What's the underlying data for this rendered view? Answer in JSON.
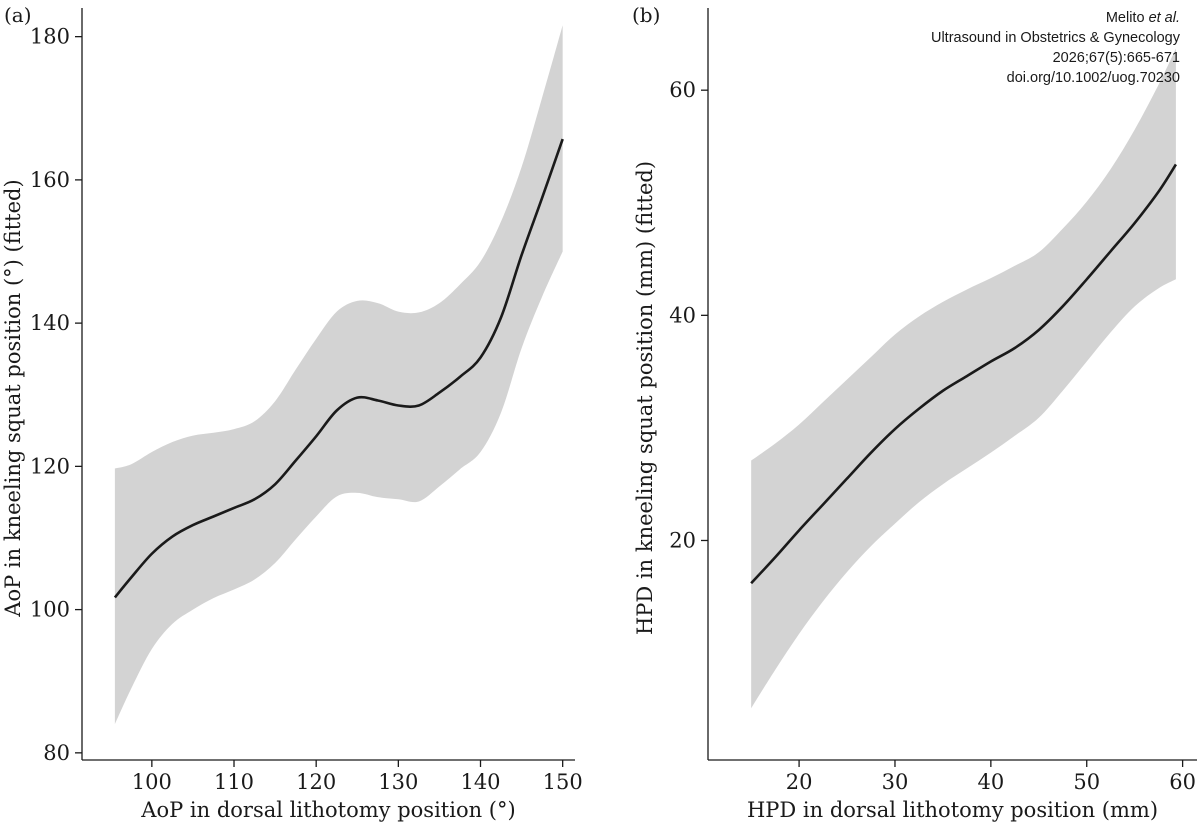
{
  "citation": {
    "authors_prefix": "Melito ",
    "authors_suffix": "et al.",
    "journal": "Ultrasound in Obstetrics & Gynecology",
    "volume": "2026;67(5):665-671",
    "doi": "doi.org/10.1002/uog.70230"
  },
  "colors": {
    "band": "#d3d3d3",
    "line": "#1a1a1a",
    "axis": "#1a1a1a"
  },
  "chart_data": [
    {
      "panel_label": "(a)",
      "type": "line",
      "xlabel": "AoP in dorsal lithotomy position (°)",
      "ylabel": "AoP in kneeling squat position (°) (fitted)",
      "xlim": [
        91.5,
        151.5
      ],
      "ylim": [
        79,
        184
      ],
      "xticks": [
        100,
        110,
        120,
        130,
        140,
        150
      ],
      "yticks": [
        80,
        100,
        120,
        140,
        160,
        180
      ],
      "x": [
        95.5,
        97.5,
        100,
        102.5,
        105,
        107.5,
        110,
        112.5,
        115,
        117.5,
        120,
        122.5,
        125,
        127.5,
        130,
        132.5,
        135,
        137.5,
        140,
        142.5,
        145,
        147.5,
        150
      ],
      "series": [
        {
          "role": "fit",
          "values": [
            101.7,
            104.5,
            107.8,
            110.2,
            111.8,
            113,
            114.2,
            115.4,
            117.5,
            120.8,
            124.2,
            127.8,
            129.6,
            129.2,
            128.5,
            128.5,
            130.3,
            132.5,
            135.2,
            140.8,
            149.5,
            157.5,
            165.7
          ]
        },
        {
          "role": "upper",
          "values": [
            119.7,
            120.3,
            122,
            123.4,
            124.3,
            124.7,
            125.2,
            126.3,
            129.1,
            133.5,
            137.8,
            141.6,
            143.1,
            142.8,
            141.6,
            141.5,
            142.8,
            145.4,
            148.6,
            154.2,
            161.8,
            171.5,
            181.6
          ]
        },
        {
          "role": "lower",
          "values": [
            84,
            89,
            94.5,
            98,
            100,
            101.6,
            102.8,
            104.2,
            106.5,
            109.8,
            113,
            115.8,
            116.3,
            115.7,
            115.4,
            115.1,
            117.2,
            119.6,
            122,
            127.5,
            136.5,
            143.7,
            150
          ]
        }
      ]
    },
    {
      "panel_label": "(b)",
      "type": "line",
      "xlabel": "HPD in dorsal lithotomy position (mm)",
      "ylabel": "HPD in kneeling squat position (mm) (fitted)",
      "xlim": [
        10.5,
        61.5
      ],
      "ylim": [
        0.5,
        67.3
      ],
      "xticks": [
        20,
        30,
        40,
        50,
        60
      ],
      "yticks": [
        20,
        40,
        60
      ],
      "x": [
        15,
        17.5,
        20,
        22.5,
        25,
        27.5,
        30,
        32.5,
        35,
        37.5,
        40,
        42.5,
        45,
        47.5,
        50,
        52.5,
        55,
        57.5,
        59.3
      ],
      "series": [
        {
          "role": "fit",
          "values": [
            16.2,
            18.5,
            20.9,
            23.2,
            25.5,
            27.8,
            29.9,
            31.7,
            33.3,
            34.6,
            35.9,
            37.1,
            38.7,
            40.8,
            43.2,
            45.7,
            48.2,
            51,
            53.4
          ]
        },
        {
          "role": "upper",
          "values": [
            27.1,
            28.6,
            30.3,
            32.3,
            34.3,
            36.3,
            38.3,
            39.9,
            41.2,
            42.3,
            43.3,
            44.4,
            45.6,
            47.7,
            50.1,
            53,
            56.5,
            60.5,
            63.7
          ]
        },
        {
          "role": "lower",
          "values": [
            5.1,
            8.5,
            11.7,
            14.6,
            17.2,
            19.5,
            21.5,
            23.4,
            25,
            26.4,
            27.8,
            29.3,
            30.9,
            33.3,
            35.9,
            38.5,
            40.8,
            42.4,
            43.2
          ]
        }
      ]
    }
  ]
}
